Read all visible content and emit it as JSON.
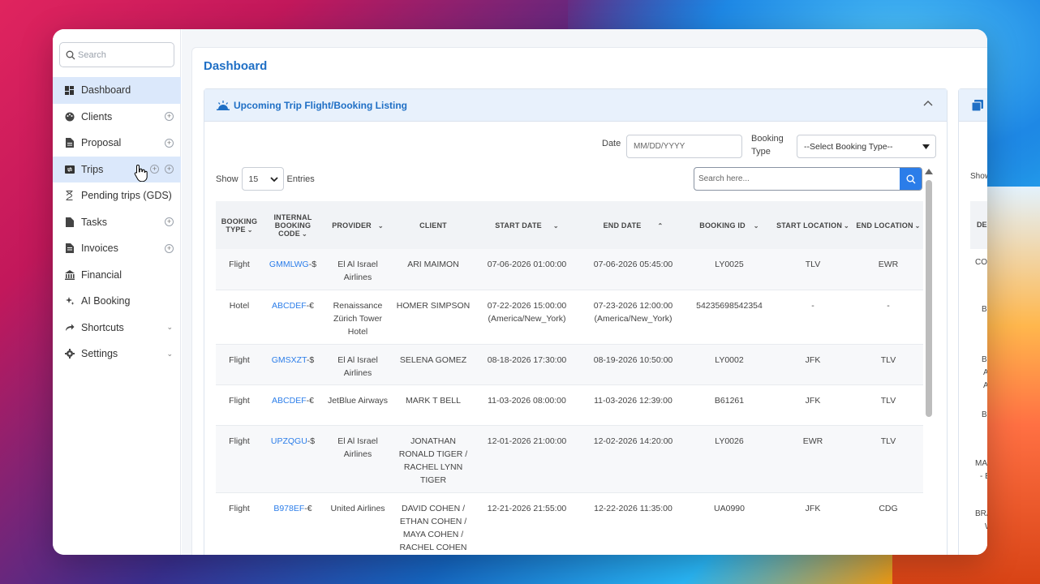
{
  "sidebar": {
    "search_placeholder": "Search",
    "items": [
      {
        "label": "Dashboard",
        "icon": "dashboard-icon",
        "active": true
      },
      {
        "label": "Clients",
        "icon": "palette-icon"
      },
      {
        "label": "Proposal",
        "icon": "document-icon"
      },
      {
        "label": "Trips",
        "icon": "ticket-icon"
      },
      {
        "label": "Pending trips (GDS)",
        "icon": "hourglass-icon"
      },
      {
        "label": "Tasks",
        "icon": "file-icon"
      },
      {
        "label": "Invoices",
        "icon": "invoice-icon"
      },
      {
        "label": "Financial",
        "icon": "bank-icon"
      },
      {
        "label": "AI Booking",
        "icon": "sparkle-icon"
      },
      {
        "label": "Shortcuts",
        "icon": "share-icon"
      },
      {
        "label": "Settings",
        "icon": "gear-icon"
      }
    ]
  },
  "main": {
    "title": "Dashboard",
    "card": {
      "title": "Upcoming Trip Flight/Booking Listing",
      "date_label": "Date",
      "date_placeholder": "MM/DD/YYYY",
      "booking_type_label_1": "Booking",
      "booking_type_label_2": "Type",
      "booking_type_value": "--Select Booking Type--",
      "show_label": "Show",
      "entries_value": "15",
      "entries_label": "Entries",
      "search_placeholder": "Search here..."
    },
    "table": {
      "headers": [
        "BOOKING TYPE",
        "INTERNAL BOOKING CODE",
        "PROVIDER",
        "CLIENT",
        "START DATE",
        "END DATE",
        "BOOKING ID",
        "START LOCATION",
        "END LOCATION"
      ],
      "rows": [
        {
          "type": "Flight",
          "code": "GMMLWG",
          "cur": "-$",
          "provider": "El Al Israel Airlines",
          "client": "ARI MAIMON",
          "start": "07-06-2026 01:00:00",
          "end": "07-06-2026 05:45:00",
          "bid": "LY0025",
          "sloc": "TLV",
          "eloc": "EWR"
        },
        {
          "type": "Hotel",
          "code": "ABCDEF",
          "cur": "-€",
          "provider": "Renaissance Zürich Tower Hotel",
          "client": "HOMER SIMPSON",
          "start": "07-22-2026 15:00:00 (America/New_York)",
          "end": "07-23-2026 12:00:00 (America/New_York)",
          "bid": "54235698542354",
          "sloc": "-",
          "eloc": "-"
        },
        {
          "type": "Flight",
          "code": "GMSXZT",
          "cur": "-$",
          "provider": "El Al Israel Airlines",
          "client": "SELENA GOMEZ",
          "start": "08-18-2026 17:30:00",
          "end": "08-19-2026 10:50:00",
          "bid": "LY0002",
          "sloc": "JFK",
          "eloc": "TLV"
        },
        {
          "type": "Flight",
          "code": "ABCDEF",
          "cur": "-€",
          "provider": "JetBlue Airways",
          "client": "MARK T BELL",
          "start": "11-03-2026 08:00:00",
          "end": "11-03-2026 12:39:00",
          "bid": "B61261",
          "sloc": "JFK",
          "eloc": "TLV"
        },
        {
          "type": "Flight",
          "code": "UPZQGU",
          "cur": "-$",
          "provider": "El Al Israel Airlines",
          "client": "JONATHAN RONALD TIGER / RACHEL LYNN TIGER",
          "start": "12-01-2026 21:00:00",
          "end": "12-02-2026 14:20:00",
          "bid": "LY0026",
          "sloc": "EWR",
          "eloc": "TLV"
        },
        {
          "type": "Flight",
          "code": "B978EF",
          "cur": "-€",
          "provider": "United Airlines",
          "client": "DAVID COHEN / ETHAN COHEN / MAYA COHEN / RACHEL COHEN",
          "start": "12-21-2026 21:55:00",
          "end": "12-22-2026 11:35:00",
          "bid": "UA0990",
          "sloc": "JFK",
          "eloc": "CDG"
        }
      ]
    },
    "peek": {
      "show": "Show",
      "header": "DE",
      "cells": [
        "CO",
        "BE",
        "BE",
        "A",
        "A",
        "BE",
        "MA",
        "- E",
        "BRA",
        "W"
      ]
    }
  },
  "colors": {
    "accent": "#1f6fc5",
    "active_bg": "#dbe8fb",
    "button": "#2b7de9"
  }
}
